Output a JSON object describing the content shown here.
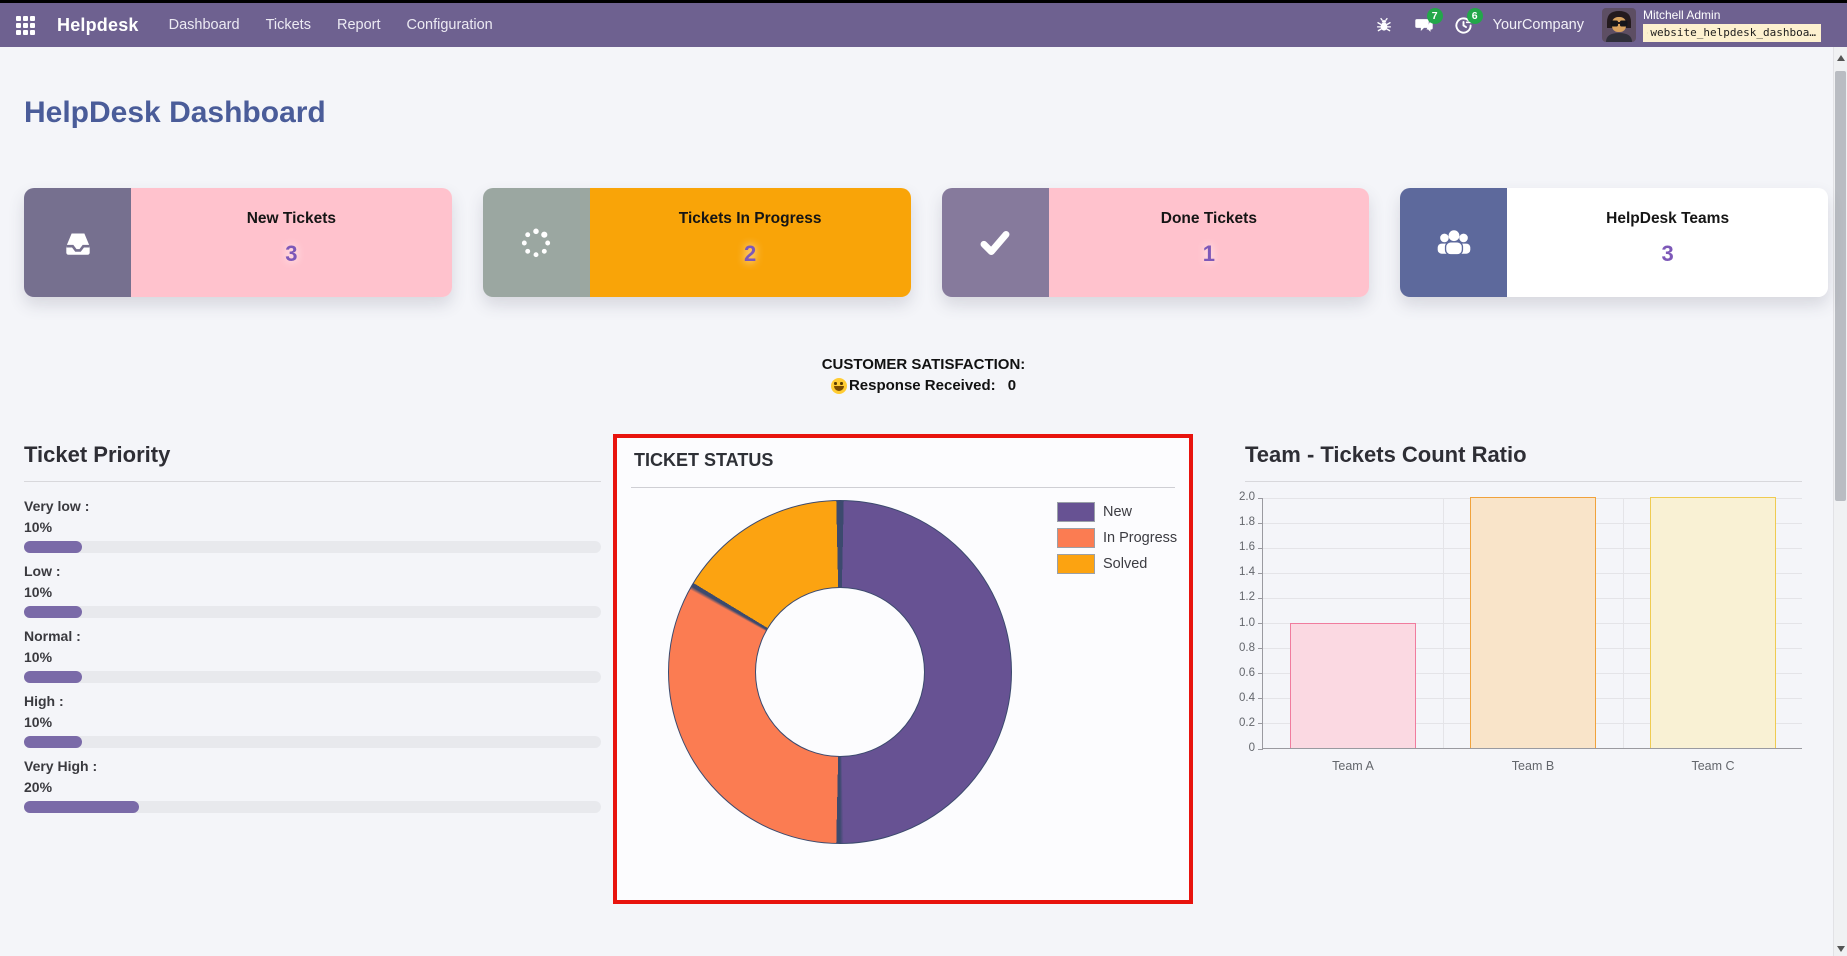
{
  "navbar": {
    "app_name": "Helpdesk",
    "menu_items": [
      "Dashboard",
      "Tickets",
      "Report",
      "Configuration"
    ],
    "message_badge_count": "7",
    "activity_badge_count": "6",
    "company": "YourCompany",
    "user_name": "Mitchell Admin",
    "database_badge": "website_helpdesk_dashboa…",
    "navbar_color": "#6e6190",
    "badge_color": "#23a74a"
  },
  "page": {
    "title": "HelpDesk Dashboard",
    "title_color": "#4a5c99"
  },
  "kpi_cards": [
    {
      "label": "New Tickets",
      "value": "3",
      "icon": "inbox-icon",
      "icon_bg": "#76708f",
      "body_bg": "#ffc2cd",
      "value_color": "#7d58b8"
    },
    {
      "label": "Tickets In Progress",
      "value": "2",
      "icon": "spinner-icon",
      "icon_bg": "#9ba7a1",
      "body_bg": "#f9a408",
      "value_color": "#7d58b8"
    },
    {
      "label": "Done Tickets",
      "value": "1",
      "icon": "check-icon",
      "icon_bg": "#867a9c",
      "body_bg": "#ffc2cd",
      "value_color": "#7d58b8"
    },
    {
      "label": "HelpDesk Teams",
      "value": "3",
      "icon": "users-icon",
      "icon_bg": "#5d699c",
      "body_bg": "#ffffff",
      "value_color": "#7d58b8"
    }
  ],
  "satisfaction": {
    "heading": "CUSTOMER SATISFACTION:",
    "emoji": "smiley-emoji",
    "label": "Response Received:",
    "value": "0"
  },
  "chart_data": [
    {
      "type": "bar",
      "subtype": "horizontal-progress-list",
      "title": "Ticket Priority",
      "categories": [
        "Very low",
        "Low",
        "Normal",
        "High",
        "Very High"
      ],
      "values": [
        10,
        10,
        10,
        10,
        20
      ],
      "unit": "%",
      "xlim": [
        0,
        100
      ],
      "bar_color": "#7a6aa8",
      "track_color": "#e8e9ed"
    },
    {
      "type": "pie",
      "subtype": "donut",
      "title": "TICKET STATUS",
      "labels": [
        "New",
        "In Progress",
        "Solved"
      ],
      "values": [
        3,
        2,
        1
      ],
      "percentages": [
        50,
        33.3,
        16.7
      ],
      "colors": [
        "#675293",
        "#fb7c52",
        "#fca311"
      ],
      "outline_color": "#3c4a6e",
      "legend_position": "top-right",
      "highlight_border_color": "#e8130e"
    },
    {
      "type": "bar",
      "title": "Team - Tickets Count Ratio",
      "categories": [
        "Team A",
        "Team B",
        "Team C"
      ],
      "values": [
        1,
        2,
        2
      ],
      "ylim": [
        0,
        2
      ],
      "ytick_step": 0.2,
      "grid": true,
      "bar_fill_colors": [
        "#fbd9e2",
        "#f9e4c9",
        "#f9f1d4"
      ],
      "bar_border_colors": [
        "#f07c9e",
        "#f0a23c",
        "#efcb51"
      ],
      "axis_color": "#9a9aa0",
      "tick_label_color": "#63666c"
    }
  ]
}
